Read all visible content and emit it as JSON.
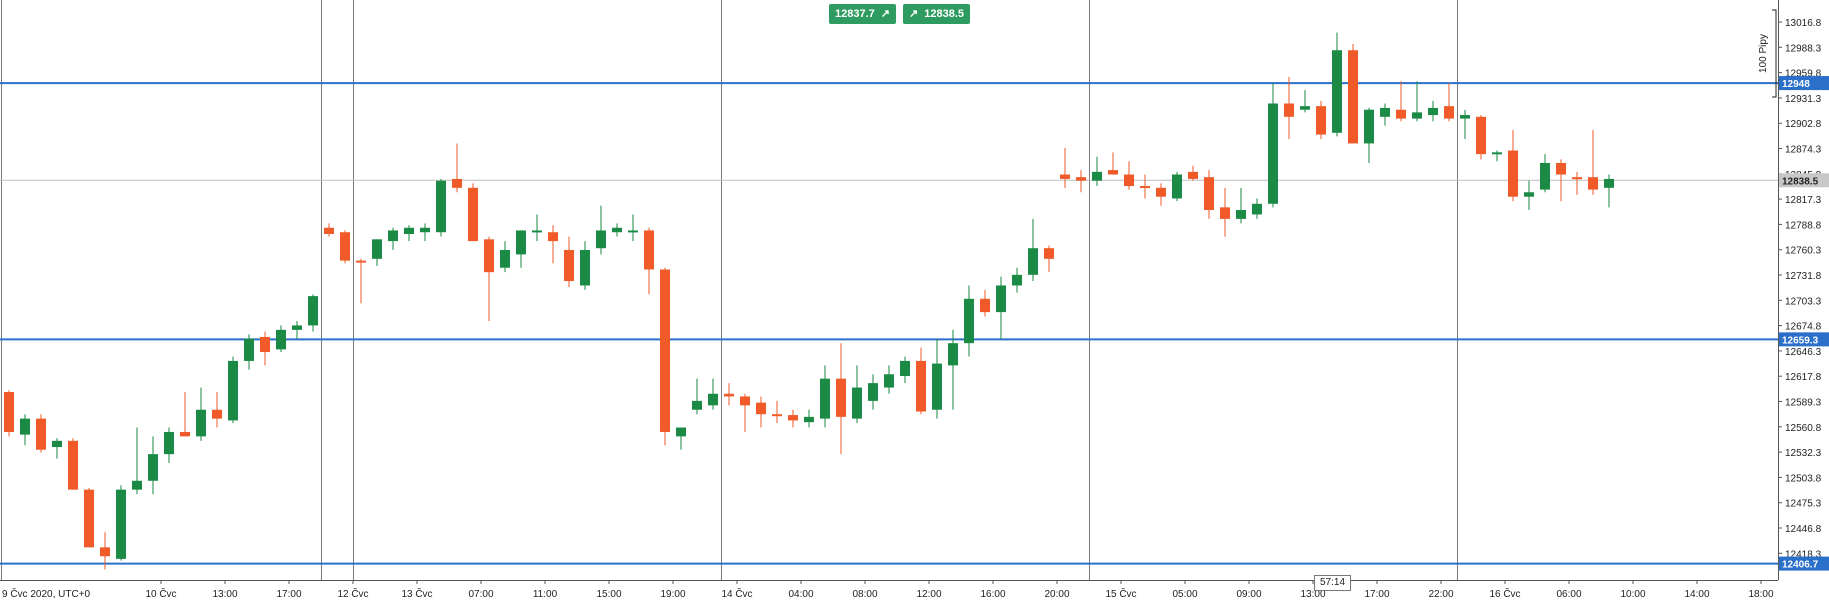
{
  "quote_bar": {
    "bid": "12837.7",
    "ask": "12838.5",
    "bid_icon": "arrow-up-right-icon",
    "ask_icon": "arrow-up-right-icon"
  },
  "timer": "57:14",
  "pip_label": "100 Pipy",
  "colors": {
    "up": "#1a8a45",
    "down": "#f05a28",
    "level": "#2a6fc9",
    "current": "#bdbdbd"
  },
  "levels": [
    {
      "label": "12948",
      "value": 12948
    },
    {
      "label": "12659.3",
      "value": 12659.3
    },
    {
      "label": "12406.7",
      "value": 12406.7
    }
  ],
  "current_price": {
    "label": "12838.5",
    "value": 12838.5
  },
  "chart_data": {
    "type": "candlestick",
    "timezone_label": "9 Čvc 2020, UTC+0",
    "y_ticks": [
      "13016.8",
      "12988.3",
      "12959.8",
      "12931.3",
      "12902.8",
      "12874.3",
      "12845.8",
      "12817.3",
      "12788.8",
      "12760.3",
      "12731.8",
      "12703.3",
      "12674.8",
      "12646.3",
      "12617.8",
      "12589.3",
      "12560.8",
      "12532.3",
      "12503.8",
      "12475.3",
      "12446.8",
      "12418.3"
    ],
    "x_ticks": [
      {
        "label": "10 Čvc",
        "slot": 9.5
      },
      {
        "label": "13:00",
        "slot": 13.5
      },
      {
        "label": "17:00",
        "slot": 17.5
      },
      {
        "label": "12 Čvc",
        "slot": 21.5
      },
      {
        "label": "13 Čvc",
        "slot": 25.5
      },
      {
        "label": "07:00",
        "slot": 29.5
      },
      {
        "label": "11:00",
        "slot": 33.5
      },
      {
        "label": "15:00",
        "slot": 37.5
      },
      {
        "label": "19:00",
        "slot": 41.5
      },
      {
        "label": "14 Čvc",
        "slot": 45.5
      },
      {
        "label": "04:00",
        "slot": 49.5
      },
      {
        "label": "08:00",
        "slot": 53.5
      },
      {
        "label": "12:00",
        "slot": 57.5
      },
      {
        "label": "16:00",
        "slot": 61.5
      },
      {
        "label": "20:00",
        "slot": 65.5
      },
      {
        "label": "15 Čvc",
        "slot": 69.5
      },
      {
        "label": "05:00",
        "slot": 73.5
      },
      {
        "label": "09:00",
        "slot": 77.5
      },
      {
        "label": "13:00",
        "slot": 81.5
      },
      {
        "label": "17:00",
        "slot": 85.5
      },
      {
        "label": "22:00",
        "slot": 89.5
      },
      {
        "label": "16 Čvc",
        "slot": 93.5
      },
      {
        "label": "06:00",
        "slot": 97.5
      },
      {
        "label": "10:00",
        "slot": 101.5
      },
      {
        "label": "14:00",
        "slot": 105.5
      },
      {
        "label": "18:00",
        "slot": 109.5
      }
    ],
    "session_separators": [
      0,
      20,
      22,
      45,
      68,
      91
    ],
    "candles": [
      {
        "o": 12600,
        "h": 12602,
        "l": 12550,
        "c": 12555
      },
      {
        "o": 12552,
        "h": 12575,
        "l": 12540,
        "c": 12570
      },
      {
        "o": 12570,
        "h": 12575,
        "l": 12532,
        "c": 12535
      },
      {
        "o": 12538,
        "h": 12548,
        "l": 12525,
        "c": 12545
      },
      {
        "o": 12545,
        "h": 12548,
        "l": 12490,
        "c": 12490
      },
      {
        "o": 12490,
        "h": 12492,
        "l": 12425,
        "c": 12425
      },
      {
        "o": 12425,
        "h": 12442,
        "l": 12400,
        "c": 12415
      },
      {
        "o": 12412,
        "h": 12495,
        "l": 12410,
        "c": 12490
      },
      {
        "o": 12490,
        "h": 12560,
        "l": 12485,
        "c": 12500
      },
      {
        "o": 12500,
        "h": 12550,
        "l": 12485,
        "c": 12530
      },
      {
        "o": 12530,
        "h": 12560,
        "l": 12520,
        "c": 12555
      },
      {
        "o": 12555,
        "h": 12600,
        "l": 12550,
        "c": 12550
      },
      {
        "o": 12550,
        "h": 12605,
        "l": 12545,
        "c": 12580
      },
      {
        "o": 12580,
        "h": 12600,
        "l": 12560,
        "c": 12570
      },
      {
        "o": 12568,
        "h": 12640,
        "l": 12565,
        "c": 12635
      },
      {
        "o": 12635,
        "h": 12665,
        "l": 12625,
        "c": 12660
      },
      {
        "o": 12662,
        "h": 12668,
        "l": 12630,
        "c": 12645
      },
      {
        "o": 12648,
        "h": 12675,
        "l": 12645,
        "c": 12670
      },
      {
        "o": 12670,
        "h": 12680,
        "l": 12660,
        "c": 12675
      },
      {
        "o": 12675,
        "h": 12710,
        "l": 12668,
        "c": 12708
      },
      {
        "o": 12785,
        "h": 12790,
        "l": 12775,
        "c": 12778
      },
      {
        "o": 12780,
        "h": 12782,
        "l": 12745,
        "c": 12748
      },
      {
        "o": 12748,
        "h": 12750,
        "l": 12700,
        "c": 12746
      },
      {
        "o": 12750,
        "h": 12772,
        "l": 12742,
        "c": 12772
      },
      {
        "o": 12770,
        "h": 12785,
        "l": 12760,
        "c": 12782
      },
      {
        "o": 12778,
        "h": 12788,
        "l": 12770,
        "c": 12785
      },
      {
        "o": 12780,
        "h": 12790,
        "l": 12770,
        "c": 12785
      },
      {
        "o": 12780,
        "h": 12840,
        "l": 12775,
        "c": 12838
      },
      {
        "o": 12840,
        "h": 12880,
        "l": 12825,
        "c": 12830
      },
      {
        "o": 12830,
        "h": 12835,
        "l": 12770,
        "c": 12770
      },
      {
        "o": 12772,
        "h": 12775,
        "l": 12680,
        "c": 12735
      },
      {
        "o": 12740,
        "h": 12770,
        "l": 12735,
        "c": 12760
      },
      {
        "o": 12755,
        "h": 12782,
        "l": 12740,
        "c": 12782
      },
      {
        "o": 12782,
        "h": 12800,
        "l": 12770,
        "c": 12782
      },
      {
        "o": 12780,
        "h": 12788,
        "l": 12745,
        "c": 12770
      },
      {
        "o": 12760,
        "h": 12775,
        "l": 12718,
        "c": 12725
      },
      {
        "o": 12720,
        "h": 12770,
        "l": 12715,
        "c": 12760
      },
      {
        "o": 12762,
        "h": 12810,
        "l": 12755,
        "c": 12782
      },
      {
        "o": 12780,
        "h": 12790,
        "l": 12775,
        "c": 12785
      },
      {
        "o": 12782,
        "h": 12800,
        "l": 12770,
        "c": 12782
      },
      {
        "o": 12782,
        "h": 12785,
        "l": 12710,
        "c": 12738
      },
      {
        "o": 12738,
        "h": 12740,
        "l": 12540,
        "c": 12555
      },
      {
        "o": 12550,
        "h": 12560,
        "l": 12535,
        "c": 12560
      },
      {
        "o": 12580,
        "h": 12615,
        "l": 12575,
        "c": 12590
      },
      {
        "o": 12585,
        "h": 12615,
        "l": 12580,
        "c": 12598
      },
      {
        "o": 12598,
        "h": 12610,
        "l": 12585,
        "c": 12595
      },
      {
        "o": 12595,
        "h": 12598,
        "l": 12555,
        "c": 12585
      },
      {
        "o": 12588,
        "h": 12595,
        "l": 12560,
        "c": 12575
      },
      {
        "o": 12575,
        "h": 12590,
        "l": 12565,
        "c": 12574
      },
      {
        "o": 12574,
        "h": 12580,
        "l": 12560,
        "c": 12568
      },
      {
        "o": 12566,
        "h": 12580,
        "l": 12560,
        "c": 12572
      },
      {
        "o": 12570,
        "h": 12630,
        "l": 12560,
        "c": 12615
      },
      {
        "o": 12615,
        "h": 12655,
        "l": 12530,
        "c": 12572
      },
      {
        "o": 12570,
        "h": 12630,
        "l": 12565,
        "c": 12605
      },
      {
        "o": 12590,
        "h": 12620,
        "l": 12580,
        "c": 12610
      },
      {
        "o": 12605,
        "h": 12630,
        "l": 12598,
        "c": 12620
      },
      {
        "o": 12618,
        "h": 12640,
        "l": 12610,
        "c": 12635
      },
      {
        "o": 12635,
        "h": 12650,
        "l": 12575,
        "c": 12578
      },
      {
        "o": 12580,
        "h": 12660,
        "l": 12570,
        "c": 12632
      },
      {
        "o": 12630,
        "h": 12670,
        "l": 12580,
        "c": 12655
      },
      {
        "o": 12655,
        "h": 12720,
        "l": 12640,
        "c": 12705
      },
      {
        "o": 12705,
        "h": 12715,
        "l": 12685,
        "c": 12690
      },
      {
        "o": 12690,
        "h": 12730,
        "l": 12660,
        "c": 12720
      },
      {
        "o": 12720,
        "h": 12740,
        "l": 12712,
        "c": 12732
      },
      {
        "o": 12732,
        "h": 12795,
        "l": 12725,
        "c": 12762
      },
      {
        "o": 12762,
        "h": 12765,
        "l": 12735,
        "c": 12750
      },
      {
        "o": 12845,
        "h": 12875,
        "l": 12830,
        "c": 12840
      },
      {
        "o": 12842,
        "h": 12850,
        "l": 12825,
        "c": 12838
      },
      {
        "o": 12838,
        "h": 12865,
        "l": 12832,
        "c": 12848
      },
      {
        "o": 12850,
        "h": 12870,
        "l": 12845,
        "c": 12845
      },
      {
        "o": 12845,
        "h": 12860,
        "l": 12828,
        "c": 12832
      },
      {
        "o": 12832,
        "h": 12845,
        "l": 12818,
        "c": 12830
      },
      {
        "o": 12830,
        "h": 12835,
        "l": 12810,
        "c": 12820
      },
      {
        "o": 12818,
        "h": 12848,
        "l": 12815,
        "c": 12845
      },
      {
        "o": 12848,
        "h": 12855,
        "l": 12838,
        "c": 12840
      },
      {
        "o": 12842,
        "h": 12850,
        "l": 12795,
        "c": 12805
      },
      {
        "o": 12808,
        "h": 12830,
        "l": 12775,
        "c": 12795
      },
      {
        "o": 12795,
        "h": 12830,
        "l": 12790,
        "c": 12805
      },
      {
        "o": 12800,
        "h": 12818,
        "l": 12795,
        "c": 12812
      },
      {
        "o": 12812,
        "h": 12948,
        "l": 12808,
        "c": 12925
      },
      {
        "o": 12925,
        "h": 12955,
        "l": 12885,
        "c": 12910
      },
      {
        "o": 12918,
        "h": 12940,
        "l": 12915,
        "c": 12922
      },
      {
        "o": 12922,
        "h": 12928,
        "l": 12885,
        "c": 12890
      },
      {
        "o": 12892,
        "h": 13005,
        "l": 12888,
        "c": 12985
      },
      {
        "o": 12985,
        "h": 12992,
        "l": 12880,
        "c": 12880
      },
      {
        "o": 12880,
        "h": 12920,
        "l": 12858,
        "c": 12918
      },
      {
        "o": 12910,
        "h": 12925,
        "l": 12900,
        "c": 12920
      },
      {
        "o": 12918,
        "h": 12950,
        "l": 12905,
        "c": 12908
      },
      {
        "o": 12908,
        "h": 12950,
        "l": 12905,
        "c": 12915
      },
      {
        "o": 12912,
        "h": 12928,
        "l": 12905,
        "c": 12920
      },
      {
        "o": 12922,
        "h": 12948,
        "l": 12905,
        "c": 12908
      },
      {
        "o": 12908,
        "h": 12918,
        "l": 12885,
        "c": 12912
      },
      {
        "o": 12910,
        "h": 12912,
        "l": 12862,
        "c": 12868
      },
      {
        "o": 12868,
        "h": 12872,
        "l": 12860,
        "c": 12870
      },
      {
        "o": 12872,
        "h": 12895,
        "l": 12815,
        "c": 12820
      },
      {
        "o": 12820,
        "h": 12838,
        "l": 12805,
        "c": 12825
      },
      {
        "o": 12828,
        "h": 12868,
        "l": 12825,
        "c": 12858
      },
      {
        "o": 12858,
        "h": 12862,
        "l": 12815,
        "c": 12845
      },
      {
        "o": 12842,
        "h": 12848,
        "l": 12822,
        "c": 12840
      },
      {
        "o": 12842,
        "h": 12895,
        "l": 12822,
        "c": 12828
      },
      {
        "o": 12830,
        "h": 12845,
        "l": 12808,
        "c": 12840
      }
    ]
  }
}
